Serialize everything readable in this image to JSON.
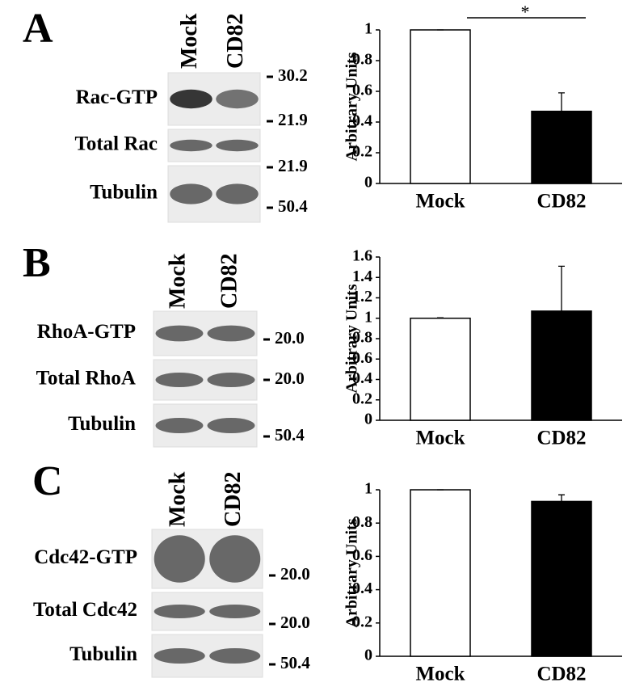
{
  "panels": [
    {
      "label": "A",
      "lanes": [
        "Mock",
        "CD82"
      ],
      "rows": [
        {
          "name": "Rac-GTP",
          "markers": [
            "30.2",
            "21.9"
          ]
        },
        {
          "name": "Total Rac",
          "markers": [
            "21.9"
          ]
        },
        {
          "name": "Tubulin",
          "markers": [
            "50.4"
          ]
        }
      ]
    },
    {
      "label": "B",
      "lanes": [
        "Mock",
        "CD82"
      ],
      "rows": [
        {
          "name": "RhoA-GTP",
          "markers": [
            "20.0"
          ]
        },
        {
          "name": "Total RhoA",
          "markers": [
            "20.0"
          ]
        },
        {
          "name": "Tubulin",
          "markers": [
            "50.4"
          ]
        }
      ]
    },
    {
      "label": "C",
      "lanes": [
        "Mock",
        "CD82"
      ],
      "rows": [
        {
          "name": "Cdc42-GTP",
          "markers": [
            "20.0"
          ]
        },
        {
          "name": "Total Cdc42",
          "markers": [
            "20.0"
          ]
        },
        {
          "name": "Tubulin",
          "markers": [
            "50.4"
          ]
        }
      ]
    }
  ],
  "chart_data": [
    {
      "type": "bar",
      "ylabel": "Arbitrary Units",
      "categories": [
        "Mock",
        "CD82"
      ],
      "values": [
        1,
        0.47
      ],
      "errors": [
        0,
        0.12
      ],
      "colors": [
        "#ffffff",
        "#000000"
      ],
      "ylim": [
        0,
        1
      ],
      "yticks": [
        0,
        0.2,
        0.4,
        0.6,
        0.8,
        1
      ],
      "annotation": "*"
    },
    {
      "type": "bar",
      "ylabel": "Arbitrary Units",
      "categories": [
        "Mock",
        "CD82"
      ],
      "values": [
        1,
        1.07
      ],
      "errors": [
        0.005,
        0.44
      ],
      "colors": [
        "#ffffff",
        "#000000"
      ],
      "ylim": [
        0,
        1.6
      ],
      "yticks": [
        0,
        0.2,
        0.4,
        0.6,
        0.8,
        1,
        1.2,
        1.4,
        1.6
      ]
    },
    {
      "type": "bar",
      "ylabel": "Arbitrary Units",
      "categories": [
        "Mock",
        "CD82"
      ],
      "values": [
        1,
        0.93
      ],
      "errors": [
        0,
        0.04
      ],
      "colors": [
        "#ffffff",
        "#000000"
      ],
      "ylim": [
        0,
        1
      ],
      "yticks": [
        0,
        0.2,
        0.4,
        0.6,
        0.8,
        1
      ]
    }
  ]
}
